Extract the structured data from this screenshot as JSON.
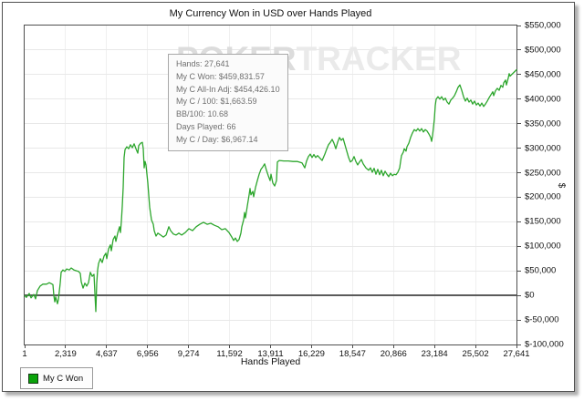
{
  "window": {
    "background": "#ffffff",
    "border_color": "#4f4f4f"
  },
  "watermark": {
    "left": "POKER",
    "right": "TRACKER"
  },
  "tooltip": {
    "lines": [
      "Hands: 27,641",
      "My C Won: $459,831.57",
      "My C All-In Adj: $454,426.10",
      "My C / 100: $1,663.59",
      "BB/100: 10.68",
      "Days Played: 66",
      "My C / Day: $6,967.14"
    ]
  },
  "legend": {
    "swatch_color": "#0aa30a",
    "position": "bottom-left"
  },
  "chart_data": {
    "type": "line",
    "title": "My Currency Won in USD over Hands Played",
    "xlabel": "Hands Played",
    "ylabel": "$",
    "grid": true,
    "xlim": [
      1,
      27641
    ],
    "ylim": [
      -100000,
      550000
    ],
    "x_tick_labels": [
      "1",
      "2,319",
      "4,637",
      "6,956",
      "9,274",
      "11,592",
      "13,911",
      "16,229",
      "18,547",
      "20,866",
      "23,184",
      "25,502",
      "27,641"
    ],
    "y_ticks": [
      550000,
      500000,
      450000,
      400000,
      350000,
      300000,
      250000,
      200000,
      150000,
      100000,
      50000,
      0,
      -50000,
      -100000
    ],
    "y_tick_labels": [
      "$550,000",
      "$500,000",
      "$450,000",
      "$400,000",
      "$350,000",
      "$300,000",
      "$250,000",
      "$200,000",
      "$150,000",
      "$100,000",
      "$50,000",
      "$0",
      "$-50,000",
      "$-100,000"
    ],
    "series": [
      {
        "name": "My C Won",
        "color": "#2da62d",
        "points": [
          [
            1,
            0
          ],
          [
            100,
            -4000
          ],
          [
            257,
            4000
          ],
          [
            360,
            -5000
          ],
          [
            514,
            2000
          ],
          [
            616,
            -7000
          ],
          [
            719,
            10000
          ],
          [
            873,
            19000
          ],
          [
            1027,
            23000
          ],
          [
            1232,
            23000
          ],
          [
            1386,
            26000
          ],
          [
            1488,
            24000
          ],
          [
            1591,
            22000
          ],
          [
            1642,
            0
          ],
          [
            1693,
            -13000
          ],
          [
            1745,
            -3000
          ],
          [
            1847,
            -17000
          ],
          [
            1898,
            -8000
          ],
          [
            2001,
            25000
          ],
          [
            2052,
            47000
          ],
          [
            2155,
            52000
          ],
          [
            2257,
            49000
          ],
          [
            2360,
            54000
          ],
          [
            2514,
            52000
          ],
          [
            2616,
            56000
          ],
          [
            2770,
            52000
          ],
          [
            2924,
            50000
          ],
          [
            3026,
            49000
          ],
          [
            3129,
            45000
          ],
          [
            3180,
            28000
          ],
          [
            3283,
            15000
          ],
          [
            3385,
            25000
          ],
          [
            3488,
            19000
          ],
          [
            3590,
            26000
          ],
          [
            3693,
            47000
          ],
          [
            3796,
            39000
          ],
          [
            3898,
            43000
          ],
          [
            4001,
            -33000
          ],
          [
            4052,
            25000
          ],
          [
            4103,
            52000
          ],
          [
            4154,
            65000
          ],
          [
            4257,
            75000
          ],
          [
            4359,
            67000
          ],
          [
            4462,
            80000
          ],
          [
            4564,
            86000
          ],
          [
            4616,
            75000
          ],
          [
            4718,
            95000
          ],
          [
            4821,
            103000
          ],
          [
            4872,
            91000
          ],
          [
            4975,
            114000
          ],
          [
            5077,
            121000
          ],
          [
            5129,
            110000
          ],
          [
            5231,
            127000
          ],
          [
            5334,
            140000
          ],
          [
            5385,
            128000
          ],
          [
            5436,
            151000
          ],
          [
            5488,
            182000
          ],
          [
            5539,
            220000
          ],
          [
            5590,
            281000
          ],
          [
            5642,
            297000
          ],
          [
            5744,
            303000
          ],
          [
            5847,
            299000
          ],
          [
            5949,
            307000
          ],
          [
            6052,
            301000
          ],
          [
            6154,
            309000
          ],
          [
            6257,
            299000
          ],
          [
            6360,
            290000
          ],
          [
            6411,
            305000
          ],
          [
            6513,
            310000
          ],
          [
            6616,
            312000
          ],
          [
            6667,
            299000
          ],
          [
            6718,
            260000
          ],
          [
            6770,
            273000
          ],
          [
            6821,
            266000
          ],
          [
            6923,
            229000
          ],
          [
            7026,
            180000
          ],
          [
            7129,
            154000
          ],
          [
            7231,
            145000
          ],
          [
            7282,
            132000
          ],
          [
            7385,
            121000
          ],
          [
            7488,
            127000
          ],
          [
            7641,
            123000
          ],
          [
            7795,
            119000
          ],
          [
            7949,
            123000
          ],
          [
            8103,
            140000
          ],
          [
            8205,
            132000
          ],
          [
            8359,
            125000
          ],
          [
            8513,
            123000
          ],
          [
            8667,
            127000
          ],
          [
            8821,
            123000
          ],
          [
            9026,
            128000
          ],
          [
            9231,
            136000
          ],
          [
            9436,
            132000
          ],
          [
            9641,
            140000
          ],
          [
            9846,
            145000
          ],
          [
            10051,
            149000
          ],
          [
            10256,
            145000
          ],
          [
            10461,
            147000
          ],
          [
            10667,
            143000
          ],
          [
            10872,
            140000
          ],
          [
            11077,
            134000
          ],
          [
            11282,
            136000
          ],
          [
            11487,
            128000
          ],
          [
            11641,
            119000
          ],
          [
            11744,
            112000
          ],
          [
            11846,
            117000
          ],
          [
            11949,
            110000
          ],
          [
            12051,
            114000
          ],
          [
            12154,
            127000
          ],
          [
            12205,
            140000
          ],
          [
            12308,
            154000
          ],
          [
            12359,
            169000
          ],
          [
            12410,
            158000
          ],
          [
            12513,
            182000
          ],
          [
            12615,
            205000
          ],
          [
            12667,
            218000
          ],
          [
            12718,
            205000
          ],
          [
            12820,
            212000
          ],
          [
            12872,
            201000
          ],
          [
            12974,
            220000
          ],
          [
            13077,
            234000
          ],
          [
            13179,
            247000
          ],
          [
            13282,
            257000
          ],
          [
            13385,
            262000
          ],
          [
            13487,
            268000
          ],
          [
            13590,
            255000
          ],
          [
            13692,
            244000
          ],
          [
            13795,
            234000
          ],
          [
            13846,
            247000
          ],
          [
            13949,
            229000
          ],
          [
            14051,
            223000
          ],
          [
            14154,
            234000
          ],
          [
            14205,
            272000
          ],
          [
            14308,
            275000
          ],
          [
            14564,
            274000
          ],
          [
            14820,
            274000
          ],
          [
            15077,
            273000
          ],
          [
            15333,
            273000
          ],
          [
            15590,
            270000
          ],
          [
            15744,
            260000
          ],
          [
            15846,
            274000
          ],
          [
            15949,
            283000
          ],
          [
            16051,
            288000
          ],
          [
            16154,
            281000
          ],
          [
            16256,
            287000
          ],
          [
            16359,
            281000
          ],
          [
            16461,
            285000
          ],
          [
            16615,
            279000
          ],
          [
            16718,
            275000
          ],
          [
            16872,
            288000
          ],
          [
            16974,
            298000
          ],
          [
            17077,
            307000
          ],
          [
            17179,
            312000
          ],
          [
            17282,
            318000
          ],
          [
            17385,
            310000
          ],
          [
            17487,
            299000
          ],
          [
            17590,
            312000
          ],
          [
            17692,
            322000
          ],
          [
            17795,
            316000
          ],
          [
            17897,
            320000
          ],
          [
            18000,
            307000
          ],
          [
            18103,
            294000
          ],
          [
            18205,
            281000
          ],
          [
            18308,
            272000
          ],
          [
            18410,
            275000
          ],
          [
            18513,
            283000
          ],
          [
            18615,
            273000
          ],
          [
            18718,
            266000
          ],
          [
            18820,
            272000
          ],
          [
            18923,
            277000
          ],
          [
            19026,
            268000
          ],
          [
            19179,
            260000
          ],
          [
            19333,
            255000
          ],
          [
            19436,
            260000
          ],
          [
            19538,
            251000
          ],
          [
            19641,
            259000
          ],
          [
            19743,
            247000
          ],
          [
            19846,
            257000
          ],
          [
            19949,
            246000
          ],
          [
            20051,
            255000
          ],
          [
            20154,
            244000
          ],
          [
            20256,
            253000
          ],
          [
            20359,
            247000
          ],
          [
            20461,
            242000
          ],
          [
            20564,
            249000
          ],
          [
            20666,
            244000
          ],
          [
            20769,
            247000
          ],
          [
            20872,
            246000
          ],
          [
            20974,
            251000
          ],
          [
            21077,
            260000
          ],
          [
            21128,
            273000
          ],
          [
            21179,
            285000
          ],
          [
            21282,
            292000
          ],
          [
            21333,
            299000
          ],
          [
            21436,
            294000
          ],
          [
            21487,
            303000
          ],
          [
            21589,
            310000
          ],
          [
            21692,
            322000
          ],
          [
            21795,
            331000
          ],
          [
            21897,
            338000
          ],
          [
            22000,
            335000
          ],
          [
            22102,
            340000
          ],
          [
            22205,
            335000
          ],
          [
            22308,
            340000
          ],
          [
            22410,
            333000
          ],
          [
            22513,
            338000
          ],
          [
            22615,
            335000
          ],
          [
            22718,
            329000
          ],
          [
            22820,
            322000
          ],
          [
            22872,
            314000
          ],
          [
            22923,
            325000
          ],
          [
            23026,
            359000
          ],
          [
            23077,
            387000
          ],
          [
            23128,
            400000
          ],
          [
            23230,
            405000
          ],
          [
            23333,
            400000
          ],
          [
            23436,
            405000
          ],
          [
            23538,
            398000
          ],
          [
            23641,
            402000
          ],
          [
            23743,
            394000
          ],
          [
            23846,
            390000
          ],
          [
            23948,
            398000
          ],
          [
            24051,
            402000
          ],
          [
            24154,
            407000
          ],
          [
            24256,
            415000
          ],
          [
            24359,
            424000
          ],
          [
            24461,
            429000
          ],
          [
            24564,
            418000
          ],
          [
            24666,
            405000
          ],
          [
            24769,
            396000
          ],
          [
            24871,
            402000
          ],
          [
            24974,
            394000
          ],
          [
            25077,
            398000
          ],
          [
            25179,
            390000
          ],
          [
            25282,
            396000
          ],
          [
            25384,
            388000
          ],
          [
            25487,
            392000
          ],
          [
            25589,
            386000
          ],
          [
            25692,
            392000
          ],
          [
            25795,
            385000
          ],
          [
            25897,
            390000
          ],
          [
            26000,
            396000
          ],
          [
            26102,
            403000
          ],
          [
            26205,
            409000
          ],
          [
            26308,
            415000
          ],
          [
            26359,
            407000
          ],
          [
            26461,
            417000
          ],
          [
            26564,
            422000
          ],
          [
            26666,
            418000
          ],
          [
            26769,
            428000
          ],
          [
            26871,
            424000
          ],
          [
            26923,
            433000
          ],
          [
            27025,
            439000
          ],
          [
            27077,
            429000
          ],
          [
            27179,
            443000
          ],
          [
            27231,
            452000
          ],
          [
            27282,
            447000
          ],
          [
            27641,
            459832
          ]
        ]
      }
    ]
  }
}
